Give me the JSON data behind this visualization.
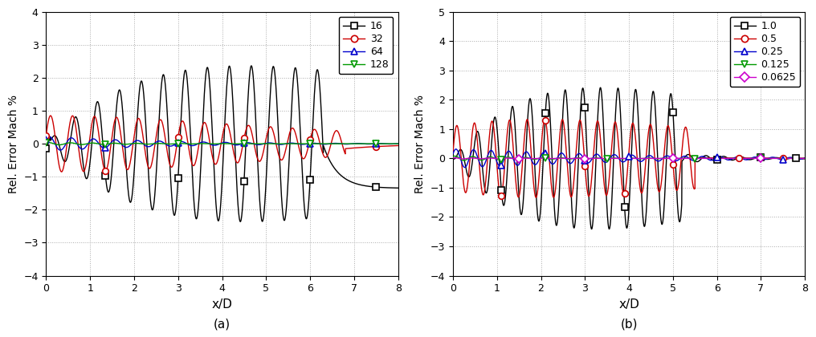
{
  "panel_a": {
    "ylabel": "Rel. Error Mach %",
    "xlabel": "x/D",
    "xlim": [
      0,
      8
    ],
    "ylim": [
      -4,
      4
    ],
    "yticks": [
      -4,
      -3,
      -2,
      -1,
      0,
      1,
      2,
      3,
      4
    ],
    "xticks": [
      0,
      1,
      2,
      3,
      4,
      5,
      6,
      7,
      8
    ],
    "label": "(a)",
    "legend_labels": [
      "16",
      "32",
      "64",
      "128"
    ],
    "legend_colors": [
      "black",
      "#cc0000",
      "#0000cc",
      "#009900"
    ],
    "legend_markers": [
      "s",
      "o",
      "^",
      "v"
    ],
    "marker_x_a16": [
      0.0,
      1.35,
      3.0,
      4.5,
      6.0,
      7.5
    ],
    "marker_x_a32": [
      0.0,
      1.35,
      3.0,
      4.5,
      6.0,
      7.5
    ],
    "marker_x_a64": [
      0.0,
      1.35,
      3.0,
      4.5,
      6.0,
      7.5
    ],
    "marker_x_a128": [
      0.0,
      1.35,
      3.0,
      4.5,
      6.0,
      7.5
    ]
  },
  "panel_b": {
    "ylabel": "Rel. Error Mach %",
    "xlabel": "x/D",
    "xlim": [
      0,
      8
    ],
    "ylim": [
      -4,
      5
    ],
    "yticks": [
      -4,
      -3,
      -2,
      -1,
      0,
      1,
      2,
      3,
      4,
      5
    ],
    "xticks": [
      0,
      1,
      2,
      3,
      4,
      5,
      6,
      7,
      8
    ],
    "label": "(b)",
    "legend_labels": [
      "1.0",
      "0.5",
      "0.25",
      "0.125",
      "0.0625"
    ],
    "legend_colors": [
      "black",
      "#cc0000",
      "#0000cc",
      "#009900",
      "#cc00cc"
    ],
    "legend_markers": [
      "s",
      "o",
      "^",
      "v",
      "D"
    ]
  }
}
